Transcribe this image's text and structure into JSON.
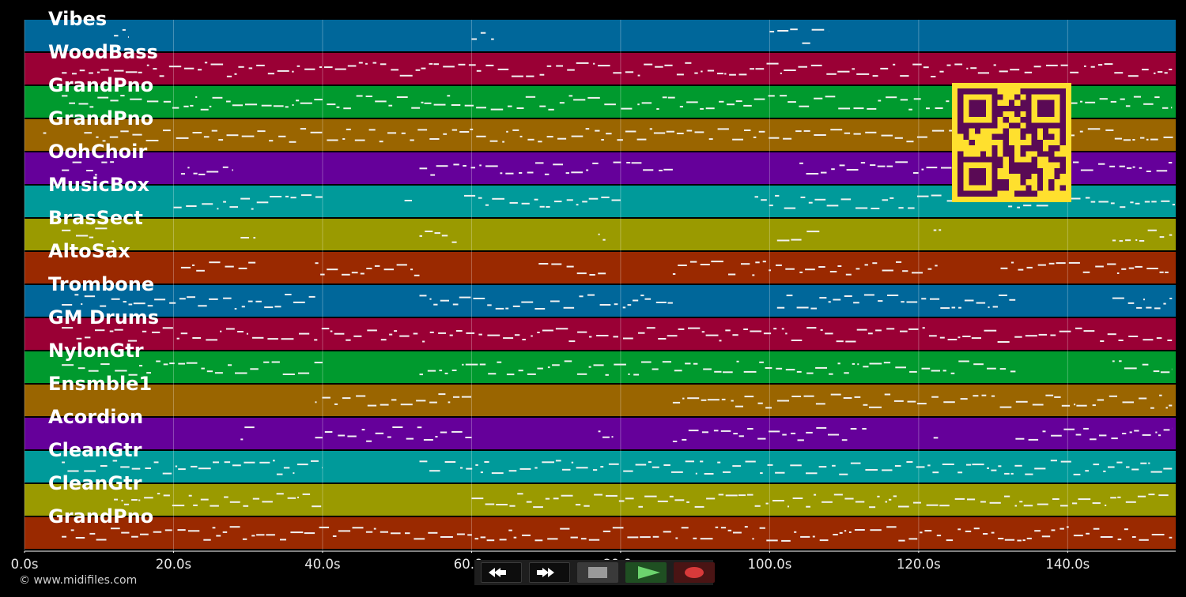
{
  "colors": {
    "background": "#000000",
    "lane_colors": [
      "#00679a",
      "#9a0035",
      "#009a2e",
      "#9a6500",
      "#65009a",
      "#009a9a",
      "#9a9a00",
      "#9a2900"
    ],
    "notes": "#f2f2f2",
    "qr_bg": "#ffe02e",
    "qr_fg": "#5a0a55"
  },
  "tracks": [
    {
      "name": "Vibes",
      "color": "#00679a",
      "regions": [
        [
          12,
          14
        ],
        [
          60,
          63
        ],
        [
          100,
          108
        ]
      ]
    },
    {
      "name": "WoodBass",
      "color": "#9a0035",
      "regions": [
        [
          5,
          154
        ]
      ]
    },
    {
      "name": "GrandPno",
      "color": "#009a2e",
      "regions": [
        [
          5,
          154
        ]
      ]
    },
    {
      "name": "GrandPno",
      "color": "#9a6500",
      "regions": [
        [
          2.5,
          2.9
        ],
        [
          8,
          155
        ]
      ]
    },
    {
      "name": "OohChoir",
      "color": "#65009a",
      "regions": [
        [
          5,
          12
        ],
        [
          21,
          28
        ],
        [
          53,
          77
        ],
        [
          79,
          87
        ],
        [
          104,
          154
        ]
      ]
    },
    {
      "name": "MusicBox",
      "color": "#009a9a",
      "regions": [
        [
          20,
          40
        ],
        [
          51,
          52
        ],
        [
          59,
          80
        ],
        [
          98,
          160
        ]
      ]
    },
    {
      "name": "BrasSect",
      "color": "#9a9a00",
      "regions": [
        [
          5,
          12
        ],
        [
          29,
          31
        ],
        [
          53,
          58
        ],
        [
          77,
          78
        ],
        [
          101,
          107
        ],
        [
          122,
          123
        ],
        [
          146,
          154
        ]
      ]
    },
    {
      "name": "AltoSax",
      "color": "#9a2900",
      "regions": [
        [
          21,
          31
        ],
        [
          39,
          53
        ],
        [
          69,
          78
        ],
        [
          87,
          123
        ],
        [
          131,
          154
        ]
      ]
    },
    {
      "name": "Trombone",
      "color": "#00679a",
      "regions": [
        [
          5,
          39
        ],
        [
          53,
          87
        ],
        [
          101,
          133
        ],
        [
          146,
          154
        ]
      ]
    },
    {
      "name": "GM Drums",
      "color": "#9a0035",
      "regions": [
        [
          5,
          154
        ]
      ]
    },
    {
      "name": "NylonGtr",
      "color": "#009a2e",
      "regions": [
        [
          5,
          40
        ],
        [
          53,
          133
        ],
        [
          146,
          154
        ]
      ]
    },
    {
      "name": "Ensmble1",
      "color": "#9a6500",
      "regions": [
        [
          39,
          60
        ],
        [
          87,
          154
        ]
      ]
    },
    {
      "name": "Acordion",
      "color": "#65009a",
      "regions": [
        [
          29,
          31
        ],
        [
          39,
          60
        ],
        [
          77,
          79
        ],
        [
          87,
          113
        ],
        [
          122,
          123
        ],
        [
          133,
          154
        ]
      ]
    },
    {
      "name": "CleanGtr",
      "color": "#009a9a",
      "regions": [
        [
          5,
          40
        ],
        [
          53,
          154
        ]
      ]
    },
    {
      "name": "CleanGtr",
      "color": "#9a9a00",
      "regions": [
        [
          12,
          40
        ],
        [
          60,
          154
        ]
      ]
    },
    {
      "name": "GrandPno",
      "color": "#9a2900",
      "regions": [
        [
          5,
          154
        ]
      ]
    }
  ],
  "time_axis": {
    "unit": "s",
    "range": [
      0,
      154.5
    ],
    "ticks": [
      {
        "value": 0,
        "label": "0.0s"
      },
      {
        "value": 20,
        "label": "20.0s"
      },
      {
        "value": 40,
        "label": "40.0s"
      },
      {
        "value": 60,
        "label": "60.0s"
      },
      {
        "value": 80,
        "label": "80.0s"
      },
      {
        "value": 100,
        "label": "100.0s"
      },
      {
        "value": 120,
        "label": "120.0s"
      },
      {
        "value": 140,
        "label": "140.0s"
      }
    ]
  },
  "footer": {
    "copyright": "© www.midifiles.com"
  },
  "transport": [
    {
      "name": "rewind-button",
      "icon": "rewind-icon"
    },
    {
      "name": "fast-forward-button",
      "icon": "fast-forward-icon"
    },
    {
      "name": "stop-button",
      "icon": "stop-icon"
    },
    {
      "name": "play-button",
      "icon": "play-icon"
    },
    {
      "name": "record-button",
      "icon": "record-icon"
    }
  ]
}
